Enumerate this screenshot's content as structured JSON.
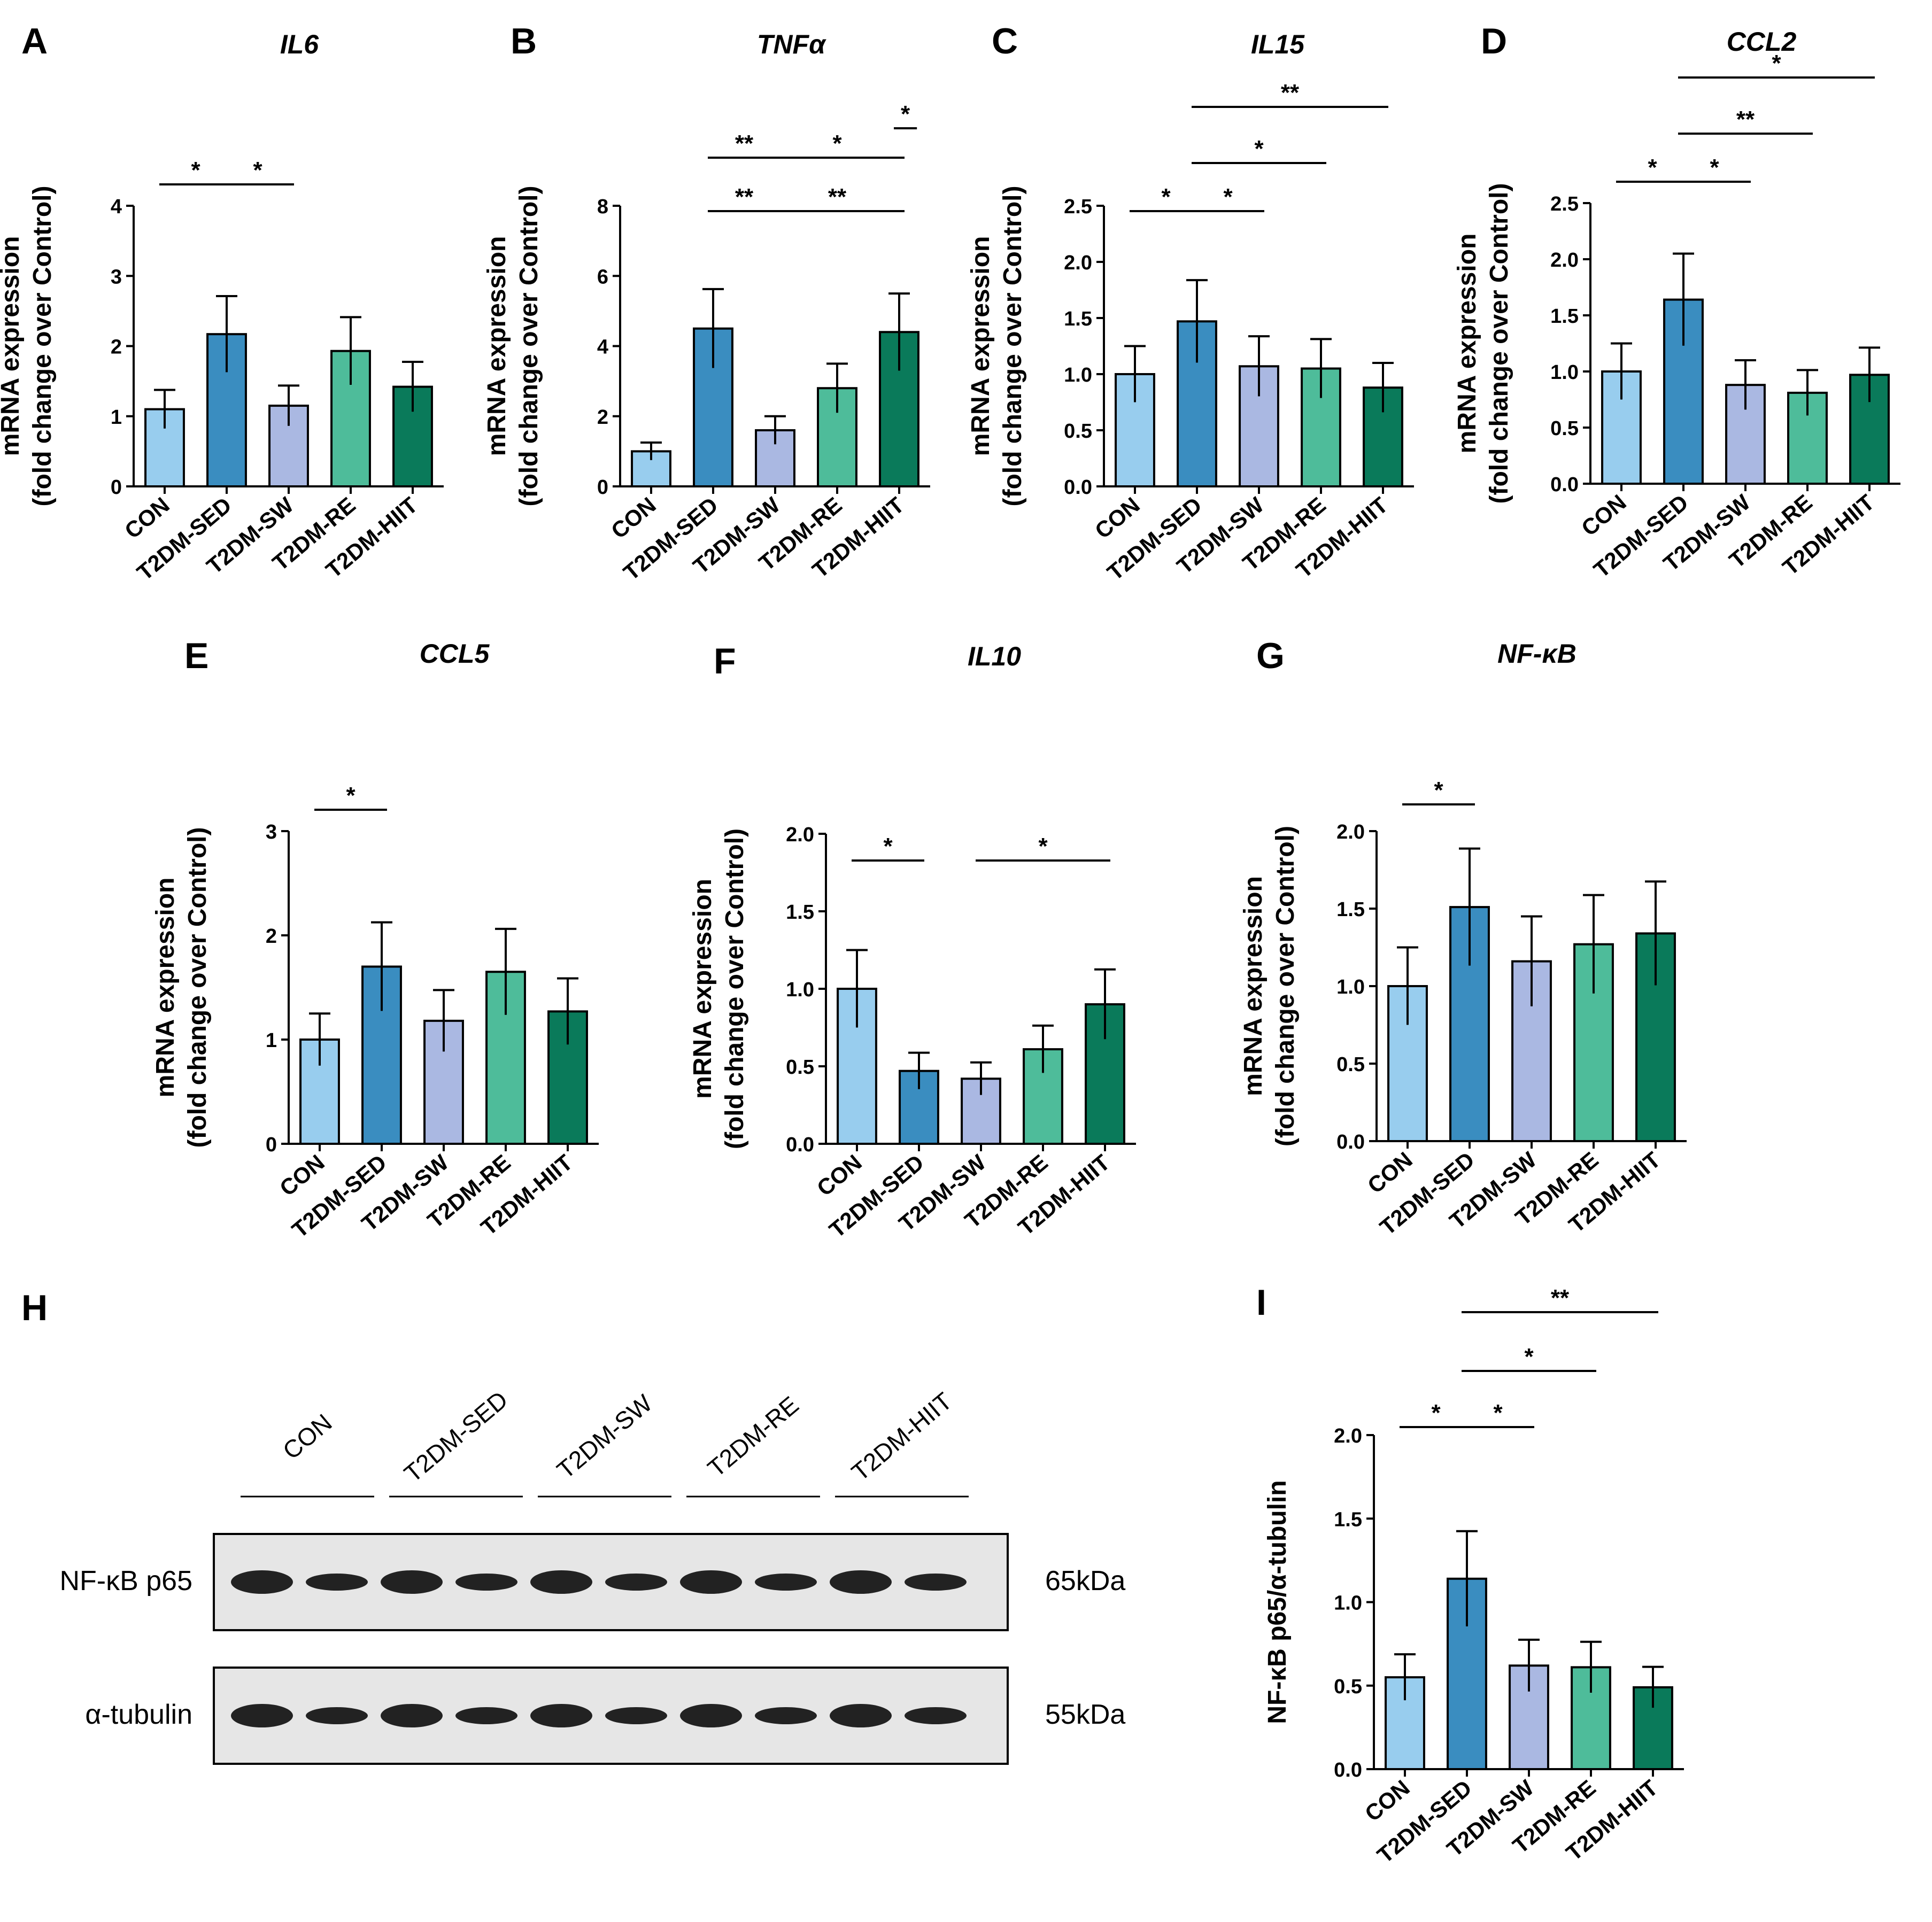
{
  "groups": [
    "CON",
    "T2DM-SED",
    "T2DM-SW",
    "T2DM-RE",
    "T2DM-HIIT"
  ],
  "colors": [
    "#98cdee",
    "#3a8dc0",
    "#aab8e2",
    "#4ebc9a",
    "#0a7a5a"
  ],
  "ylabel1": "mRNA expression",
  "ylabel2": "(fold change over Control)",
  "chart_data": [
    {
      "letter": "A",
      "title": "IL6",
      "ylim": [
        0,
        4
      ],
      "ticks": [
        "0",
        "1",
        "2",
        "3",
        "4"
      ],
      "values": [
        1.1,
        2.17,
        1.15,
        1.93,
        1.42
      ],
      "sig": [
        "*",
        "*"
      ]
    },
    {
      "letter": "B",
      "title": "TNFα",
      "ylim": [
        0,
        8
      ],
      "ticks": [
        "0",
        "2",
        "4",
        "6",
        "8"
      ],
      "values": [
        1.0,
        4.5,
        1.6,
        2.8,
        4.4
      ],
      "sig": [
        "**",
        "*",
        "*",
        "**",
        "**"
      ]
    },
    {
      "letter": "C",
      "title": "IL15",
      "ylim": [
        0,
        2.5
      ],
      "ticks": [
        "0.0",
        "0.5",
        "1.0",
        "1.5",
        "2.0",
        "2.5"
      ],
      "values": [
        1.0,
        1.47,
        1.07,
        1.05,
        0.88
      ],
      "sig": [
        "*",
        "*",
        "*",
        "**"
      ]
    },
    {
      "letter": "D",
      "title": "CCL2",
      "ylim": [
        0,
        2.5
      ],
      "ticks": [
        "0.0",
        "0.5",
        "1.0",
        "1.5",
        "2.0",
        "2.5"
      ],
      "values": [
        1.0,
        1.64,
        0.88,
        0.81,
        0.97
      ],
      "sig": [
        "*",
        "*",
        "**",
        "*"
      ]
    },
    {
      "letter": "E",
      "title": "CCL5",
      "ylim": [
        0,
        3
      ],
      "ticks": [
        "0",
        "1",
        "2",
        "3"
      ],
      "values": [
        1.0,
        1.7,
        1.18,
        1.65,
        1.27
      ],
      "sig": [
        "*"
      ]
    },
    {
      "letter": "F",
      "title": "IL10",
      "ylim": [
        0,
        2
      ],
      "ticks": [
        "0.0",
        "0.5",
        "1.0",
        "1.5",
        "2.0"
      ],
      "values": [
        1.0,
        0.47,
        0.42,
        0.61,
        0.9
      ],
      "sig": [
        "*",
        "*"
      ]
    },
    {
      "letter": "G",
      "title": "NF-κB",
      "ylim": [
        0,
        2
      ],
      "ticks": [
        "0.0",
        "0.5",
        "1.0",
        "1.5",
        "2.0"
      ],
      "values": [
        1.0,
        1.51,
        1.16,
        1.27,
        1.34
      ],
      "sig": [
        "*"
      ]
    },
    {
      "letter": "I",
      "title": "",
      "ylabel": "NF-κB p65/α-tubulin",
      "ylim": [
        0,
        2
      ],
      "ticks": [
        "0.0",
        "0.5",
        "1.0",
        "1.5",
        "2.0"
      ],
      "values": [
        0.55,
        1.14,
        0.62,
        0.61,
        0.49
      ],
      "sig": [
        "*",
        "*",
        "*",
        "**"
      ]
    }
  ],
  "blot": {
    "letter": "H",
    "rows": [
      {
        "label": "NF-κB p65",
        "size": "65kDa"
      },
      {
        "label": "α-tubulin",
        "size": "55kDa"
      }
    ]
  }
}
